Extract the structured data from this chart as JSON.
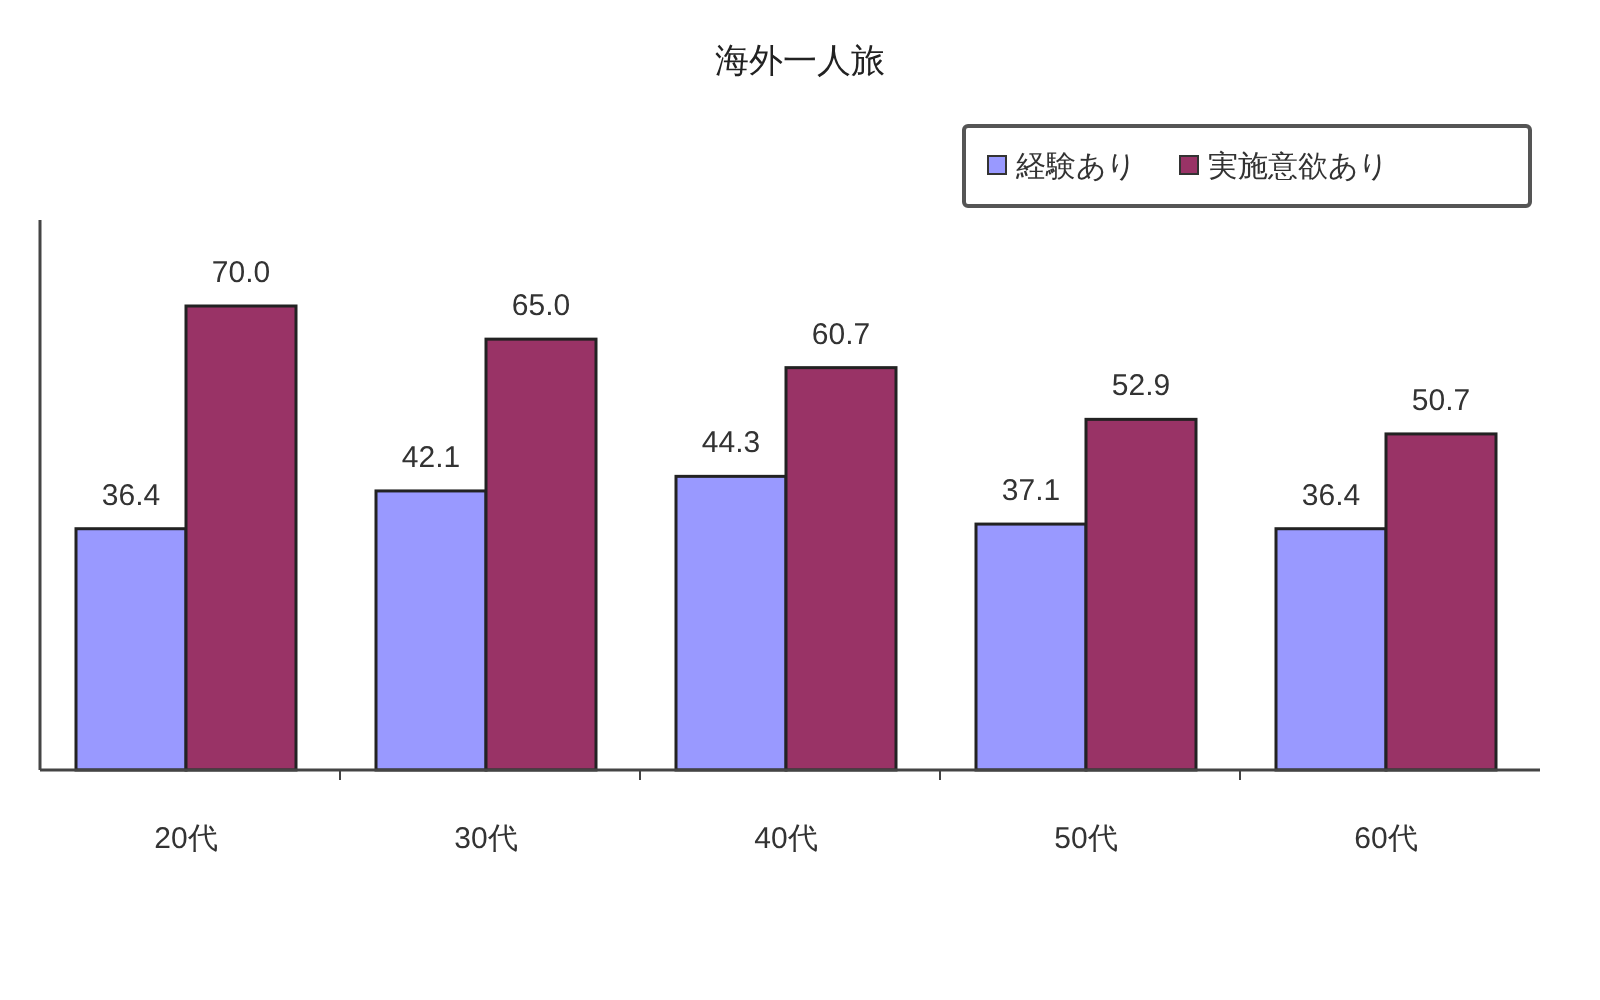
{
  "chart_data": {
    "type": "bar",
    "title": "海外一人旅",
    "categories": [
      "20代",
      "30代",
      "40代",
      "50代",
      "60代"
    ],
    "series": [
      {
        "name": "経験あり",
        "color": "#9999ff",
        "values": [
          36.4,
          42.1,
          44.3,
          37.1,
          36.4
        ],
        "value_labels": [
          "36.4",
          "42.1",
          "44.3",
          "37.1",
          "36.4"
        ]
      },
      {
        "name": "実施意欲あり",
        "color": "#993366",
        "values": [
          70.0,
          65.0,
          60.7,
          52.9,
          50.7
        ],
        "value_labels": [
          "70.0",
          "65.0",
          "60.7",
          "52.9",
          "50.7"
        ]
      }
    ],
    "legend": "top right"
  }
}
